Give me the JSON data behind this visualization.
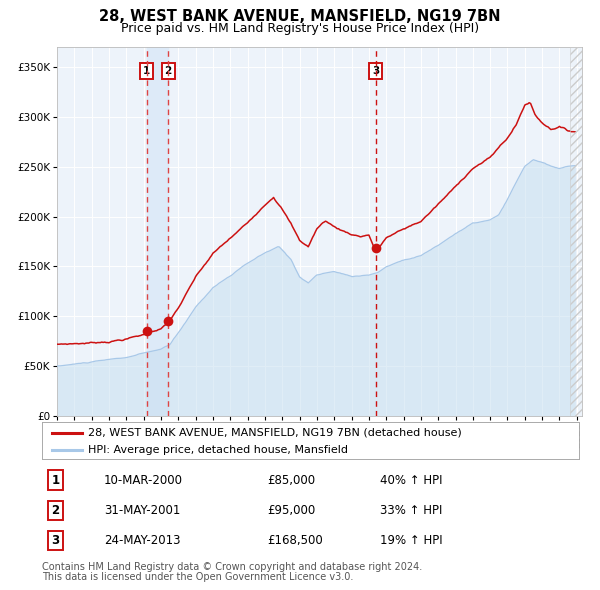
{
  "title": "28, WEST BANK AVENUE, MANSFIELD, NG19 7BN",
  "subtitle": "Price paid vs. HM Land Registry's House Price Index (HPI)",
  "ylim": [
    0,
    370000
  ],
  "yticks": [
    0,
    50000,
    100000,
    150000,
    200000,
    250000,
    300000,
    350000
  ],
  "ytick_labels": [
    "£0",
    "£50K",
    "£100K",
    "£150K",
    "£200K",
    "£250K",
    "£300K",
    "£350K"
  ],
  "hpi_color": "#a8c8e8",
  "hpi_fill_color": "#c8dff0",
  "price_color": "#cc1111",
  "marker_color": "#cc1111",
  "vline_color_12": "#dd4444",
  "vline_color_3": "#cc1111",
  "shade_color": "#ddeaf8",
  "background_color": "#edf3fa",
  "grid_color": "#ffffff",
  "hatch_color": "#cccccc",
  "legend_label_price": "28, WEST BANK AVENUE, MANSFIELD, NG19 7BN (detached house)",
  "legend_label_hpi": "HPI: Average price, detached house, Mansfield",
  "transactions": [
    {
      "num": 1,
      "date_label": "10-MAR-2000",
      "price_label": "£85,000",
      "pct_label": "40% ↑ HPI",
      "year": 2000.19,
      "price": 85000
    },
    {
      "num": 2,
      "date_label": "31-MAY-2001",
      "price_label": "£95,000",
      "pct_label": "33% ↑ HPI",
      "year": 2001.41,
      "price": 95000
    },
    {
      "num": 3,
      "date_label": "24-MAY-2013",
      "price_label": "£168,500",
      "pct_label": "19% ↑ HPI",
      "year": 2013.39,
      "price": 168500
    }
  ],
  "footer_text1": "Contains HM Land Registry data © Crown copyright and database right 2024.",
  "footer_text2": "This data is licensed under the Open Government Licence v3.0.",
  "title_fontsize": 10.5,
  "subtitle_fontsize": 9,
  "tick_fontsize": 7.5,
  "legend_fontsize": 8,
  "table_fontsize": 8.5,
  "footer_fontsize": 7
}
